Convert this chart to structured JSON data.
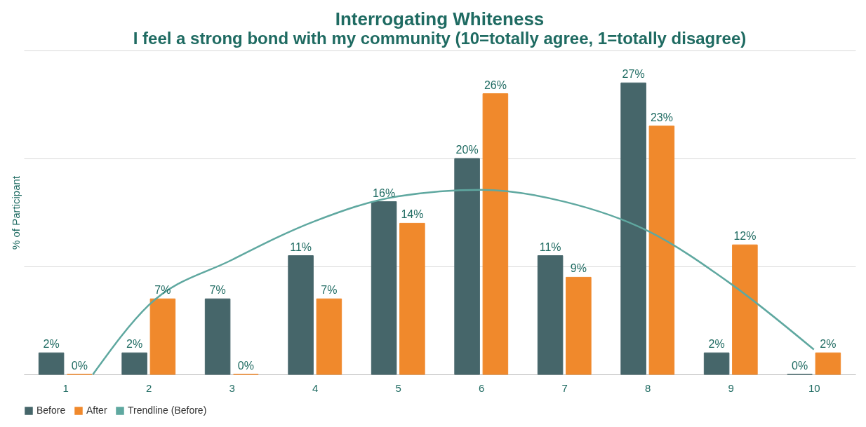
{
  "chart_data": {
    "type": "bar",
    "title": "Interrogating Whiteness",
    "subtitle": "I feel a strong bond with my community (10=totally agree, 1=totally disagree)",
    "ylabel": "% of Participant",
    "x": [
      1,
      2,
      3,
      4,
      5,
      6,
      7,
      8,
      9,
      10
    ],
    "xlim": [
      0.5,
      10.5
    ],
    "xticks": [
      1,
      2,
      3,
      4,
      5,
      6,
      7,
      8,
      9,
      10
    ],
    "ylim": [
      0,
      30
    ],
    "yticks": [
      0,
      10,
      20,
      30
    ],
    "tick_labels": "x",
    "grid": "y",
    "legend": "bottom",
    "series": [
      {
        "name": "Before",
        "color": "#46666a",
        "values": [
          2,
          2,
          7,
          11,
          16,
          20,
          11,
          27,
          2,
          0
        ],
        "value_labels": [
          "2%",
          "2%",
          "7%",
          "11%",
          "16%",
          "20%",
          "11%",
          "27%",
          "2%",
          "0%"
        ]
      },
      {
        "name": "After",
        "color": "#f0892c",
        "values": [
          0,
          7,
          0,
          7,
          14,
          26,
          9,
          23,
          12,
          2
        ],
        "value_labels": [
          "0%",
          "7%",
          "0%",
          "7%",
          "14%",
          "26%",
          "9%",
          "23%",
          "12%",
          "2%"
        ]
      },
      {
        "name": "Trendline (Before)",
        "type": "line",
        "color": "#5fa8a0",
        "x": [
          1.33,
          2,
          3,
          4,
          5,
          6,
          7,
          8,
          9,
          10
        ],
        "values": [
          0,
          6.4,
          10.6,
          14.2,
          16.5,
          17.1,
          16,
          13.3,
          8.4,
          2.3
        ]
      }
    ]
  }
}
